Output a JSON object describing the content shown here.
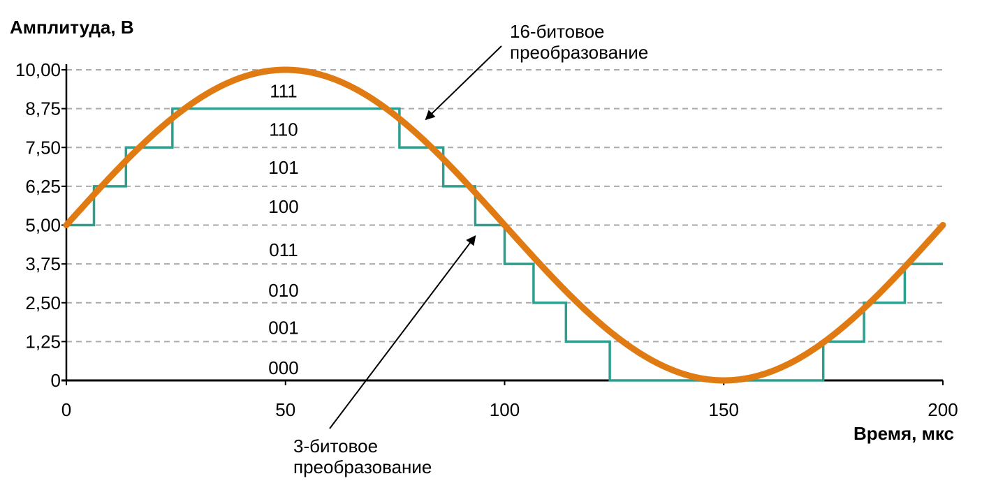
{
  "chart_data": {
    "type": "line",
    "ylabel": "Амплитуда, В",
    "xlabel": "Время, мкс",
    "xlim": [
      0,
      200
    ],
    "ylim": [
      0,
      10
    ],
    "x_ticks": [
      {
        "value": 0,
        "label": "0"
      },
      {
        "value": 50,
        "label": "50"
      },
      {
        "value": 100,
        "label": "100"
      },
      {
        "value": 150,
        "label": "150"
      },
      {
        "value": 200,
        "label": "200"
      }
    ],
    "y_ticks": [
      {
        "value": 0,
        "label": "0"
      },
      {
        "value": 1.25,
        "label": "1,25"
      },
      {
        "value": 2.5,
        "label": "2,50"
      },
      {
        "value": 3.75,
        "label": "3,75"
      },
      {
        "value": 5,
        "label": "5,00"
      },
      {
        "value": 6.25,
        "label": "6,25"
      },
      {
        "value": 7.5,
        "label": "7,50"
      },
      {
        "value": 8.75,
        "label": "8,75"
      },
      {
        "value": 10,
        "label": "10,00"
      }
    ],
    "grid": "horizontal-dashed",
    "colors": {
      "sine": "#e07a12",
      "steps": "#2e9e8e",
      "grid": "#aaaaaa"
    },
    "series": [
      {
        "kind": "sine",
        "amplitude": 5,
        "offset": 5,
        "period": 200,
        "x": [
          0,
          10,
          20,
          30,
          40,
          50,
          60,
          70,
          80,
          90,
          100,
          110,
          120,
          130,
          140,
          150,
          160,
          170,
          180,
          190,
          200
        ],
        "values": [
          5.0,
          6.55,
          7.94,
          9.05,
          9.76,
          10.0,
          9.76,
          9.05,
          7.94,
          6.55,
          5.0,
          3.45,
          2.06,
          0.95,
          0.24,
          0.0,
          0.24,
          0.95,
          2.06,
          3.45,
          5.0
        ]
      },
      {
        "kind": "steps",
        "points": [
          [
            0,
            5.0
          ],
          [
            6.3,
            5.0
          ],
          [
            6.3,
            6.25
          ],
          [
            13.6,
            6.25
          ],
          [
            13.6,
            7.5
          ],
          [
            24.2,
            7.5
          ],
          [
            24.2,
            8.75
          ],
          [
            76.0,
            8.75
          ],
          [
            76.0,
            7.5
          ],
          [
            86.0,
            7.5
          ],
          [
            86.0,
            6.25
          ],
          [
            93.3,
            6.25
          ],
          [
            93.3,
            5.0
          ],
          [
            100.0,
            5.0
          ],
          [
            100.0,
            3.75
          ],
          [
            106.6,
            3.75
          ],
          [
            106.6,
            2.5
          ],
          [
            114.0,
            2.5
          ],
          [
            114.0,
            1.25
          ],
          [
            124.0,
            1.25
          ],
          [
            124.0,
            0.0
          ],
          [
            172.7,
            0.0
          ],
          [
            172.7,
            1.25
          ],
          [
            182.0,
            1.25
          ],
          [
            182.0,
            2.5
          ],
          [
            191.3,
            2.5
          ],
          [
            191.3,
            3.75
          ],
          [
            200,
            3.75
          ]
        ]
      }
    ],
    "level_codes": [
      {
        "code": "111",
        "y": 9.32
      },
      {
        "code": "110",
        "y": 8.08
      },
      {
        "code": "101",
        "y": 6.85
      },
      {
        "code": "100",
        "y": 5.6
      },
      {
        "code": "011",
        "y": 4.2
      },
      {
        "code": "010",
        "y": 2.9
      },
      {
        "code": "001",
        "y": 1.7
      },
      {
        "code": "000",
        "y": 0.4
      }
    ],
    "annotations": [
      {
        "lines": [
          "16-битовое",
          "преобразование"
        ],
        "arrow_to": [
          82,
          8.4
        ]
      },
      {
        "lines": [
          "3-битовое",
          "преобразование"
        ],
        "arrow_to": [
          93.3,
          4.65
        ]
      }
    ]
  }
}
